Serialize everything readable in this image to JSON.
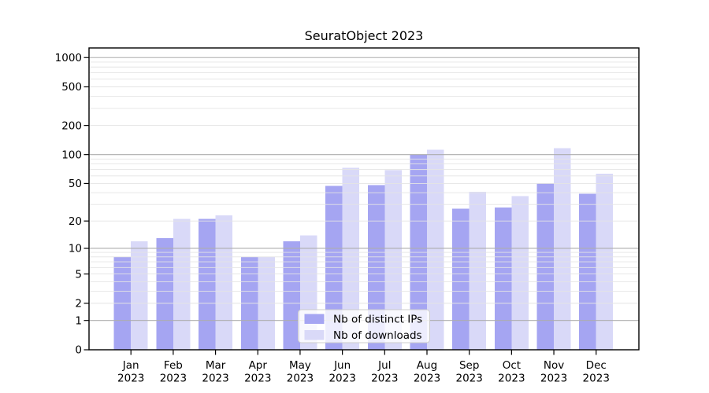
{
  "chart_data": {
    "type": "bar",
    "title": "SeuratObject 2023",
    "categories": [
      "Jan",
      "Feb",
      "Mar",
      "Apr",
      "May",
      "Jun",
      "Jul",
      "Aug",
      "Sep",
      "Oct",
      "Nov",
      "Dec"
    ],
    "year_label": "2023",
    "series": [
      {
        "name": "Nb of distinct IPs",
        "color": "#a5a5f2",
        "values": [
          8,
          13,
          21,
          8,
          12,
          47,
          48,
          100,
          27,
          28,
          50,
          39
        ]
      },
      {
        "name": "Nb of downloads",
        "color": "#d9d9f8",
        "values": [
          12,
          21,
          23,
          8,
          14,
          73,
          69,
          112,
          41,
          37,
          117,
          63
        ]
      }
    ],
    "y_ticks": [
      0,
      1,
      2,
      5,
      10,
      20,
      50,
      100,
      200,
      500,
      1000
    ],
    "y_scale": "log1p",
    "ylim": [
      0,
      1250
    ],
    "grid": true,
    "legend_position": "inside-bottom-center",
    "colors": {
      "grid_major": "#adadad",
      "grid_minor": "#e4e4e4",
      "axis": "#000000",
      "legend_border": "#cccccc",
      "legend_bg_opacity": "0.8",
      "text": "#000000",
      "background": "#ffffff"
    }
  }
}
